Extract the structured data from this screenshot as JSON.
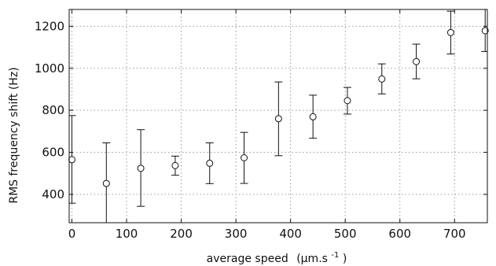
{
  "chart_data": {
    "type": "scatter",
    "title": "",
    "xlabel": "average speed",
    "xlabel_unit": "(μm.s",
    "xlabel_exponent": "-1",
    "xlabel_unit_close": ")",
    "ylabel": "RMS frequency shift (Hz)",
    "xlim": [
      -5,
      760
    ],
    "ylim": [
      265,
      1280
    ],
    "xticks": [
      0,
      100,
      200,
      300,
      400,
      500,
      600,
      700
    ],
    "yticks": [
      400,
      600,
      800,
      1000,
      1200
    ],
    "grid": true,
    "grid_style": "dotted",
    "marker": "open-circle",
    "error_bars": true,
    "points": [
      {
        "x": 0,
        "y": 565,
        "lo": 358,
        "hi": 775
      },
      {
        "x": 63,
        "y": 452,
        "lo": 265,
        "hi": 645
      },
      {
        "x": 126,
        "y": 524,
        "lo": 343,
        "hi": 708
      },
      {
        "x": 189,
        "y": 537,
        "lo": 491,
        "hi": 582
      },
      {
        "x": 252,
        "y": 548,
        "lo": 451,
        "hi": 645
      },
      {
        "x": 315,
        "y": 574,
        "lo": 452,
        "hi": 695
      },
      {
        "x": 378,
        "y": 760,
        "lo": 584,
        "hi": 935
      },
      {
        "x": 441,
        "y": 769,
        "lo": 667,
        "hi": 872
      },
      {
        "x": 504,
        "y": 846,
        "lo": 782,
        "hi": 909
      },
      {
        "x": 567,
        "y": 949,
        "lo": 878,
        "hi": 1021
      },
      {
        "x": 630,
        "y": 1032,
        "lo": 950,
        "hi": 1115
      },
      {
        "x": 693,
        "y": 1170,
        "lo": 1068,
        "hi": 1272
      },
      {
        "x": 756,
        "y": 1179,
        "lo": 1080,
        "hi": 1280
      }
    ],
    "colors": {
      "axis": "#111111",
      "grid": "#9a9a9a",
      "marker": "#111111"
    }
  }
}
